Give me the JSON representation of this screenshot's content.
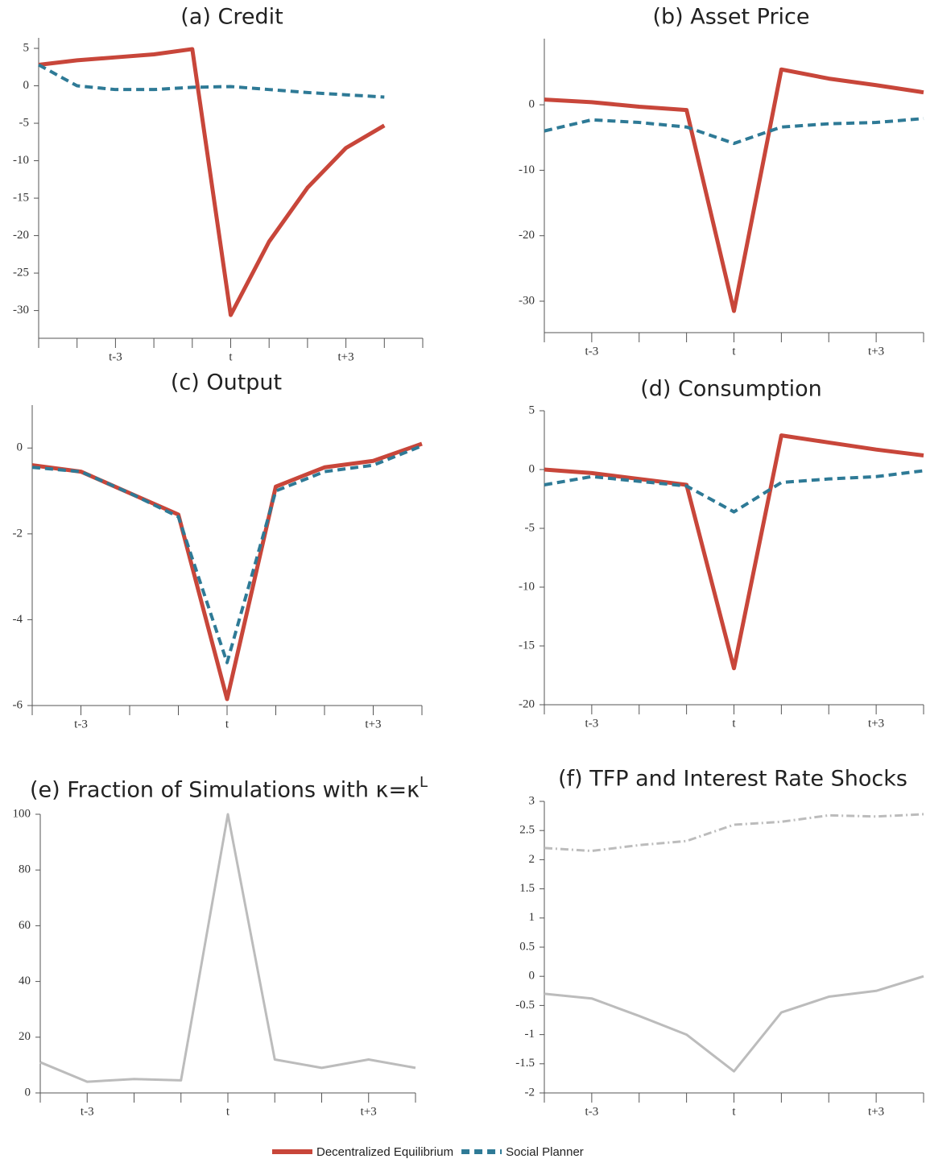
{
  "chart_data": [
    {
      "type": "line",
      "title": "(a) Credit",
      "categories": [
        null,
        null,
        "t-3",
        null,
        null,
        "t",
        null,
        null,
        "t+3",
        null,
        null
      ],
      "series": [
        {
          "name": "Decentralized Equilibrium",
          "color": "#c8463a",
          "dash": "solid",
          "values": [
            2.8,
            3.4,
            3.8,
            4.2,
            4.9,
            -30.6,
            -20.8,
            -13.6,
            -8.3,
            -5.3,
            null
          ]
        },
        {
          "name": "Social Planner",
          "color": "#2e7a96",
          "dash": "dashed",
          "values": [
            2.8,
            0,
            -0.5,
            -0.5,
            -0.2,
            -0.1,
            -0.5,
            -0.9,
            -1.2,
            -1.5,
            null
          ]
        }
      ],
      "ylim": [
        -33.7,
        6.4
      ],
      "yticks": [
        -30,
        -25,
        -20,
        -15,
        -10,
        -5,
        0,
        5
      ]
    },
    {
      "type": "line",
      "title": "(b) Asset Price",
      "categories": [
        null,
        "t-3",
        null,
        null,
        "t",
        null,
        null,
        "t+3",
        null
      ],
      "series": [
        {
          "color": "#c8463a",
          "dash": "solid",
          "values": [
            0.8,
            0.4,
            -0.3,
            -0.8,
            -31.5,
            5.4,
            4.0,
            3.0,
            1.9
          ]
        },
        {
          "color": "#2e7a96",
          "dash": "dashed",
          "values": [
            -4.0,
            -2.3,
            -2.7,
            -3.4,
            -5.9,
            -3.4,
            -2.9,
            -2.7,
            -2.1
          ]
        }
      ],
      "ylim": [
        -34.8,
        10.1
      ],
      "yticks": [
        -30,
        -20,
        -10,
        0
      ]
    },
    {
      "type": "line",
      "title": "(c) Output",
      "categories": [
        null,
        "t-3",
        null,
        null,
        "t",
        null,
        null,
        "t+3",
        null
      ],
      "series": [
        {
          "color": "#c8463a",
          "dash": "solid",
          "values": [
            -0.4,
            -0.55,
            -1.05,
            -1.55,
            -5.85,
            -0.9,
            -0.45,
            -0.3,
            0.1
          ]
        },
        {
          "color": "#2e7a96",
          "dash": "dashed",
          "values": [
            -0.45,
            -0.55,
            -1.05,
            -1.6,
            -5.0,
            -1.0,
            -0.55,
            -0.4,
            0.05
          ]
        }
      ],
      "ylim": [
        -6,
        1.0
      ],
      "yticks": [
        -6,
        -4,
        -2,
        0
      ]
    },
    {
      "type": "line",
      "title": "(d) Consumption",
      "categories": [
        null,
        "t-3",
        null,
        null,
        "t",
        null,
        null,
        "t+3",
        null
      ],
      "series": [
        {
          "color": "#c8463a",
          "dash": "solid",
          "values": [
            0,
            -0.3,
            -0.8,
            -1.3,
            -16.9,
            2.9,
            2.3,
            1.7,
            1.2
          ]
        },
        {
          "color": "#2e7a96",
          "dash": "dashed",
          "values": [
            -1.3,
            -0.6,
            -1.0,
            -1.4,
            -3.6,
            -1.1,
            -0.8,
            -0.6,
            -0.1
          ]
        }
      ],
      "ylim": [
        -20,
        5
      ],
      "yticks": [
        -20,
        -15,
        -10,
        -5,
        0,
        5
      ]
    },
    {
      "type": "line",
      "title": "(e) Fraction of Simulations with κ=κ",
      "title_superscript": "L",
      "categories": [
        null,
        "t-3",
        null,
        null,
        "t",
        null,
        null,
        "t+3",
        null
      ],
      "series": [
        {
          "color": "#bcbcbc",
          "dash": "solid",
          "values": [
            11,
            4,
            5,
            4.5,
            100,
            12,
            9,
            12,
            9
          ]
        }
      ],
      "ylim": [
        0,
        100
      ],
      "yticks": [
        0,
        20,
        40,
        60,
        80,
        100
      ]
    },
    {
      "type": "line",
      "title": "(f) TFP and Interest Rate Shocks",
      "categories": [
        null,
        "t-3",
        null,
        null,
        "t",
        null,
        null,
        "t+3",
        null
      ],
      "series": [
        {
          "color": "#bcbcbc",
          "dash": "dashdot",
          "values": [
            2.2,
            2.15,
            2.25,
            2.32,
            2.6,
            2.65,
            2.76,
            2.74,
            2.78
          ]
        },
        {
          "color": "#bcbcbc",
          "dash": "solid",
          "values": [
            -0.3,
            -0.38,
            -0.68,
            -1.0,
            -1.63,
            -0.62,
            -0.35,
            -0.25,
            0
          ]
        }
      ],
      "ylim": [
        -2,
        3
      ],
      "yticks": [
        -2,
        -1.5,
        -1,
        -0.5,
        0,
        0.5,
        1,
        1.5,
        2,
        2.5,
        3
      ]
    }
  ]
}
